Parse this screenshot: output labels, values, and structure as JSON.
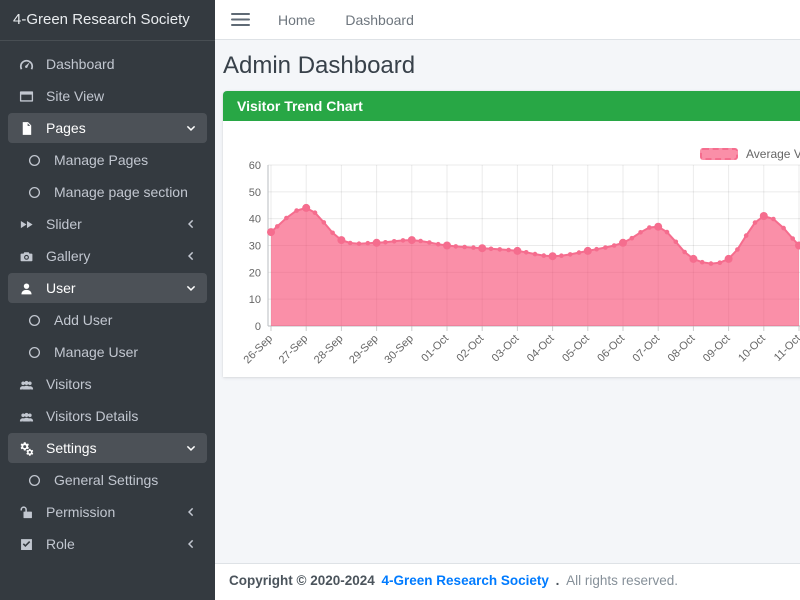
{
  "colors": {
    "sidebar_bg": "#343a40",
    "accent_green": "#28a745",
    "chart_pink": "#f56d8e",
    "link_blue": "#007bff",
    "content_bg": "#f4f6f9"
  },
  "sidebar": {
    "brand": "4-Green Research Society",
    "items": [
      {
        "label": "Dashboard",
        "icon": "gauge-icon",
        "type": "item"
      },
      {
        "label": "Site View",
        "icon": "window-icon",
        "type": "item"
      },
      {
        "label": "Pages",
        "icon": "file-icon",
        "type": "parent",
        "state": "expanded"
      },
      {
        "label": "Manage Pages",
        "icon": "circle-icon",
        "type": "sub"
      },
      {
        "label": "Manage page section",
        "icon": "circle-icon",
        "type": "sub"
      },
      {
        "label": "Slider",
        "icon": "forward-icon",
        "type": "parent",
        "state": "collapsed"
      },
      {
        "label": "Gallery",
        "icon": "camera-icon",
        "type": "parent",
        "state": "collapsed"
      },
      {
        "label": "User",
        "icon": "user-icon",
        "type": "parent",
        "state": "expanded"
      },
      {
        "label": "Add User",
        "icon": "circle-icon",
        "type": "sub"
      },
      {
        "label": "Manage User",
        "icon": "circle-icon",
        "type": "sub"
      },
      {
        "label": "Visitors",
        "icon": "users-icon",
        "type": "item"
      },
      {
        "label": "Visitors Details",
        "icon": "users-icon",
        "type": "item"
      },
      {
        "label": "Settings",
        "icon": "gears-icon",
        "type": "parent",
        "state": "expanded"
      },
      {
        "label": "General Settings",
        "icon": "circle-icon",
        "type": "sub"
      },
      {
        "label": "Permission",
        "icon": "unlock-icon",
        "type": "parent",
        "state": "collapsed"
      },
      {
        "label": "Role",
        "icon": "check-square-icon",
        "type": "parent",
        "state": "collapsed"
      }
    ]
  },
  "navbar": {
    "links": [
      "Home",
      "Dashboard"
    ]
  },
  "page": {
    "title": "Admin Dashboard"
  },
  "card": {
    "header": "Visitor Trend Chart"
  },
  "chart_data": {
    "type": "area",
    "title": "Visitor Trend Chart",
    "legend": [
      "Average Visitors"
    ],
    "legend_position": "top-right",
    "categories": [
      "26-Sep",
      "27-Sep",
      "28-Sep",
      "29-Sep",
      "30-Sep",
      "01-Oct",
      "02-Oct",
      "03-Oct",
      "04-Oct",
      "05-Oct",
      "06-Oct",
      "07-Oct",
      "08-Oct",
      "09-Oct",
      "10-Oct",
      "11-Oct"
    ],
    "values": [
      35,
      44,
      32,
      31,
      32,
      30,
      29,
      28,
      26,
      28,
      31,
      37,
      25,
      25,
      41,
      30
    ],
    "xlabel": "",
    "ylabel": "",
    "ylim": [
      0,
      60
    ],
    "ytick_step": 10,
    "grid": true,
    "fill_color": "rgba(247,68,110,0.6)",
    "line_color": "#f56d8e"
  },
  "footer": {
    "prefix": "Copyright © 2020-2024",
    "company": "4-Green Research Society",
    "dot": ".",
    "rest": "All rights reserved."
  }
}
